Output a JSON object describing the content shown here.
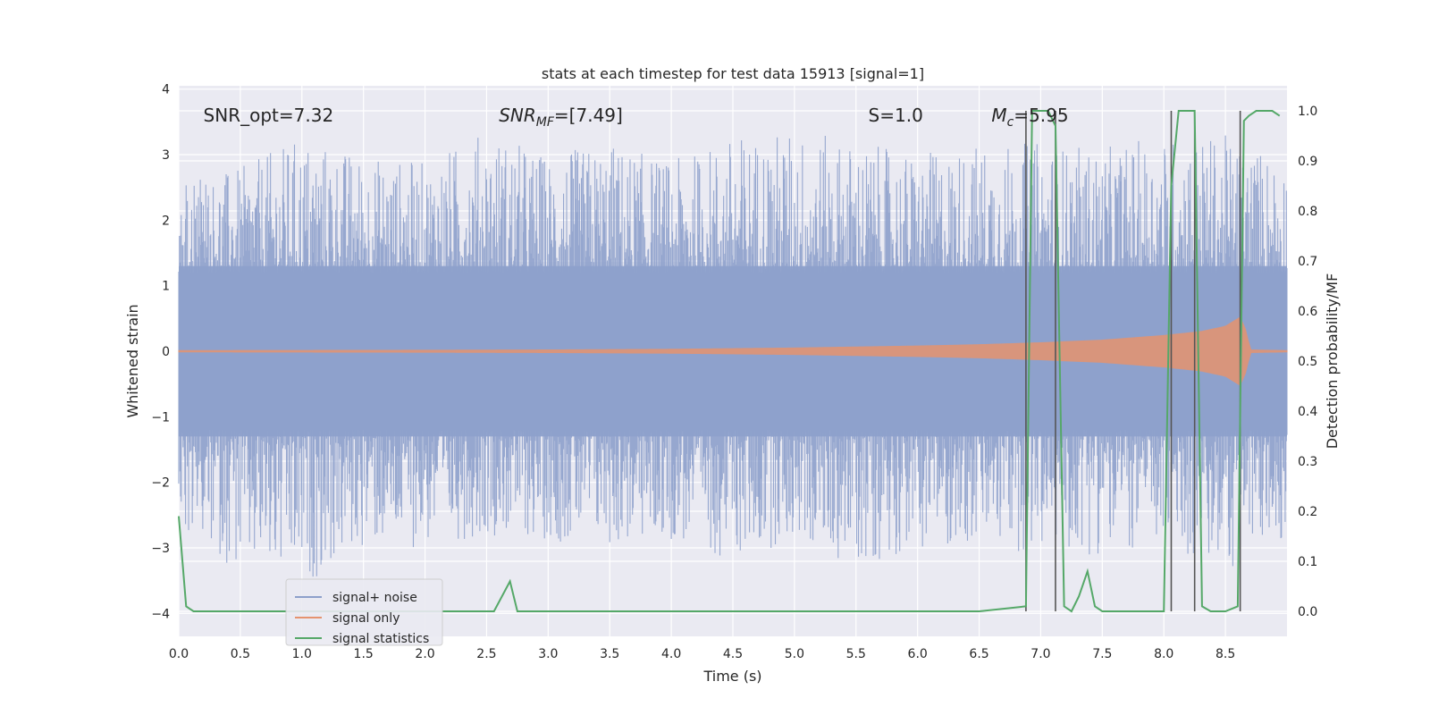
{
  "chart_data": {
    "type": "line",
    "title": "stats at each timestep for test data 15913 [signal=1]",
    "xlabel": "Time (s)",
    "ylabel": "Whitened strain",
    "y2label": "Detection probability/MF",
    "xlim": [
      0.0,
      9.0
    ],
    "ylim": [
      -4.35,
      4.05
    ],
    "y2lim": [
      -0.05,
      1.05
    ],
    "xticks": [
      "0.0",
      "0.5",
      "1.0",
      "1.5",
      "2.0",
      "2.5",
      "3.0",
      "3.5",
      "4.0",
      "4.5",
      "5.0",
      "5.5",
      "6.0",
      "6.5",
      "7.0",
      "7.5",
      "8.0",
      "8.5"
    ],
    "yticks": [
      "4",
      "3",
      "2",
      "1",
      "0",
      "−1",
      "−2",
      "−3",
      "−4"
    ],
    "y2ticks": [
      "1.0",
      "0.9",
      "0.8",
      "0.7",
      "0.6",
      "0.5",
      "0.4",
      "0.3",
      "0.2",
      "0.1",
      "0.0"
    ],
    "grid": true,
    "legend_position": "bottom-left",
    "annotations": [
      {
        "text": "SNR_opt=7.32",
        "x": 0.2,
        "y": 3.6
      },
      {
        "text": "SNR_MF=[7.49]",
        "x": 2.6,
        "y": 3.6
      },
      {
        "text": "S=1.0",
        "x": 5.6,
        "y": 3.6
      },
      {
        "text": "M_c=5.95",
        "x": 6.6,
        "y": 3.6
      }
    ],
    "noise_envelope": {
      "x": [
        0,
        0.5,
        1,
        1.5,
        2,
        2.5,
        3,
        3.5,
        4,
        4.5,
        5,
        5.5,
        6,
        6.5,
        7,
        7.5,
        8,
        8.5,
        9
      ],
      "upper": [
        2.6,
        2.8,
        3.3,
        3.0,
        2.9,
        3.4,
        3.0,
        3.2,
        2.9,
        3.3,
        3.4,
        3.2,
        3.0,
        3.2,
        3.2,
        3.1,
        3.3,
        3.3,
        3.0
      ],
      "lower": [
        -2.7,
        -3.4,
        -3.6,
        -3.0,
        -3.0,
        -2.8,
        -2.9,
        -3.0,
        -2.9,
        -3.2,
        -2.9,
        -3.3,
        -3.0,
        -3.0,
        -3.1,
        -3.1,
        -3.0,
        -3.4,
        -2.8
      ]
    },
    "signal_envelope": {
      "x": [
        0,
        2,
        3,
        4,
        5,
        6,
        6.5,
        7,
        7.5,
        8,
        8.3,
        8.5,
        8.62,
        8.67,
        8.7,
        9
      ],
      "amplitude": [
        0.01,
        0.015,
        0.02,
        0.03,
        0.05,
        0.08,
        0.1,
        0.13,
        0.17,
        0.24,
        0.3,
        0.38,
        0.52,
        0.3,
        0.02,
        0.01
      ]
    },
    "series": [
      {
        "name": "signal+ noise",
        "color": "#8da0cb"
      },
      {
        "name": "signal only",
        "color": "#e5936f"
      },
      {
        "name": "signal statistics",
        "color": "#55a868",
        "x": [
          0.0,
          0.06,
          0.12,
          0.5,
          1.0,
          1.5,
          2.0,
          2.5,
          2.56,
          2.69,
          2.75,
          3.0,
          4.0,
          5.0,
          6.0,
          6.5,
          6.88,
          6.93,
          7.0,
          7.06,
          7.12,
          7.19,
          7.25,
          7.31,
          7.38,
          7.44,
          7.5,
          7.62,
          7.75,
          8.0,
          8.06,
          8.12,
          8.19,
          8.25,
          8.31,
          8.38,
          8.5,
          8.6,
          8.65,
          8.69,
          8.75,
          8.81,
          8.88,
          8.94
        ],
        "y": [
          0.19,
          0.01,
          0.0,
          0.0,
          0.0,
          0.0,
          0.0,
          0.0,
          0.0,
          0.06,
          0.0,
          0.0,
          0.0,
          0.0,
          0.0,
          0.0,
          0.01,
          1.0,
          1.0,
          1.0,
          0.97,
          0.01,
          0.0,
          0.03,
          0.08,
          0.01,
          0.0,
          0.0,
          0.0,
          0.0,
          0.85,
          1.0,
          1.0,
          1.0,
          0.01,
          0.0,
          0.0,
          0.01,
          0.98,
          0.99,
          1.0,
          1.0,
          1.0,
          0.99
        ]
      }
    ],
    "vlines": {
      "color": "#555555",
      "x": [
        6.88,
        7.12,
        8.06,
        8.25,
        8.62
      ]
    }
  }
}
